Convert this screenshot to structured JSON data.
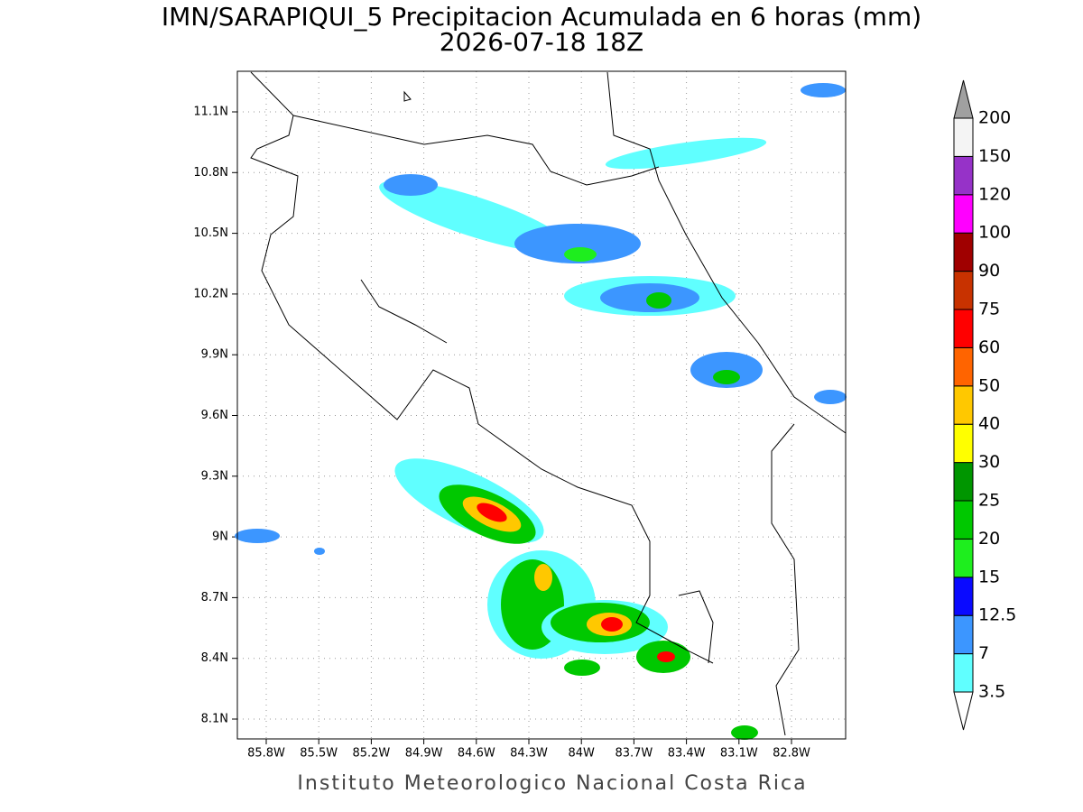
{
  "title": "IMN/SARAPIQUI_5 Precipitacion Acumulada en 6 horas (mm)",
  "subtitle": "2026-07-18 18Z",
  "footer": "Instituto Meteorologico Nacional Costa Rica",
  "lat_labels": [
    "11.1N",
    "10.8N",
    "10.5N",
    "10.2N",
    "9.9N",
    "9.6N",
    "9.3N",
    "9N",
    "8.7N",
    "8.4N",
    "8.1N"
  ],
  "lon_labels": [
    "85.8W",
    "85.5W",
    "85.2W",
    "84.9W",
    "84.6W",
    "84.3W",
    "84W",
    "83.7W",
    "83.4W",
    "83.1W",
    "82.8W"
  ],
  "colorbar": {
    "levels": [
      3.5,
      7,
      12.5,
      15,
      20,
      25,
      30,
      40,
      50,
      60,
      75,
      90,
      100,
      120,
      150,
      200
    ],
    "colors": [
      "#60ffff",
      "#3c96ff",
      "#0a0aff",
      "#1eee1e",
      "#00c800",
      "#009600",
      "#ffff00",
      "#ffc800",
      "#ff6400",
      "#ff0000",
      "#c83200",
      "#a00000",
      "#ff00ff",
      "#9632c8",
      "#f4f4f4"
    ],
    "under_color": "#ffffff",
    "over_color": "#a0a0a0"
  }
}
